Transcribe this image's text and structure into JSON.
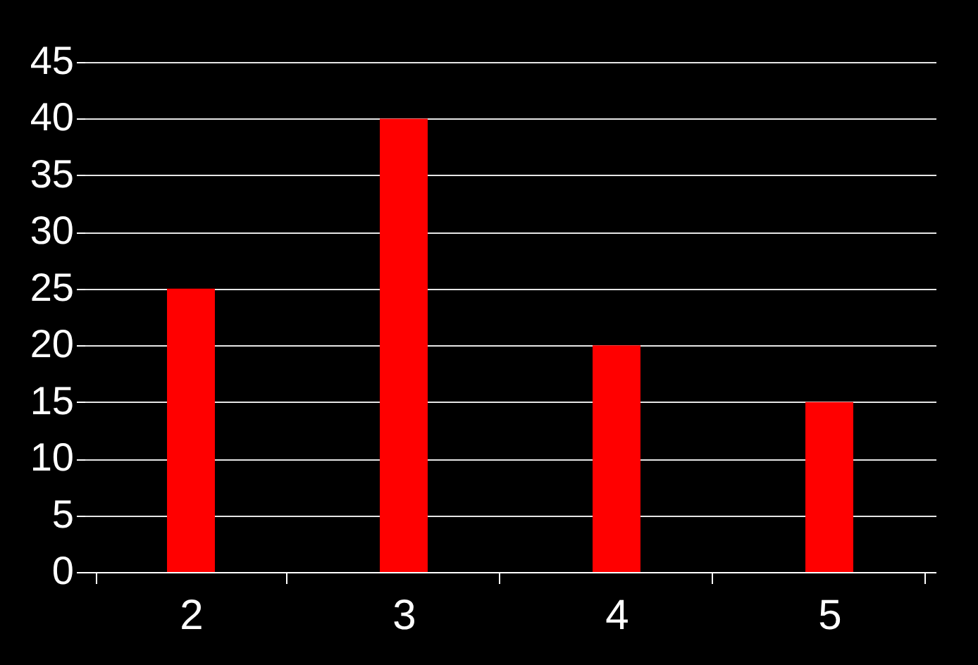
{
  "chart_data": {
    "type": "bar",
    "categories": [
      "2",
      "3",
      "4",
      "5"
    ],
    "values": [
      25,
      40,
      20,
      15
    ],
    "color": "#ff0000",
    "ylim": [
      0,
      45
    ],
    "yticks": [
      0,
      5,
      10,
      15,
      20,
      25,
      30,
      35,
      40,
      45
    ],
    "grid": "y"
  }
}
